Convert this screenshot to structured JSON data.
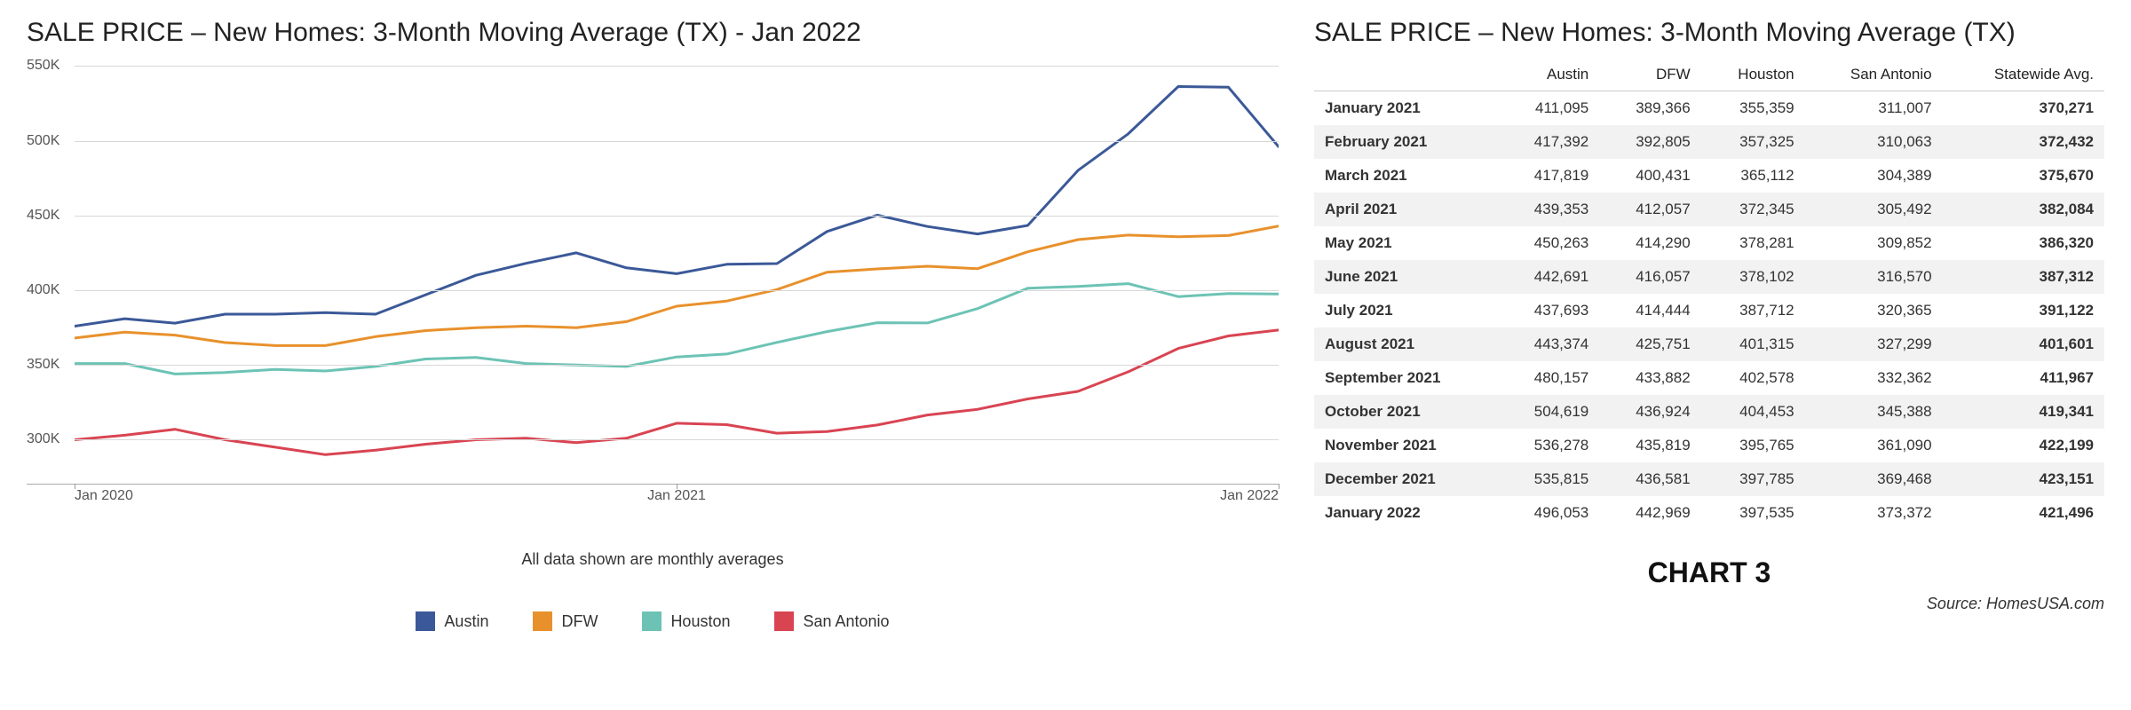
{
  "chart": {
    "type": "line",
    "title": "SALE PRICE – New Homes: 3-Month Moving Average (TX) - Jan 2022",
    "subtitle": "All data shown are monthly averages",
    "background_color": "#ffffff",
    "grid_color": "#d8d8d8",
    "axis_font_size": 16,
    "title_font_size": 30,
    "line_width": 3,
    "y_axis": {
      "min": 270000,
      "max": 555000,
      "ticks": [
        300000,
        350000,
        400000,
        450000,
        500000,
        550000
      ],
      "tick_labels": [
        "300K",
        "350K",
        "400K",
        "450K",
        "500K",
        "550K"
      ]
    },
    "x_axis": {
      "count": 25,
      "ticks": [
        0,
        12,
        24
      ],
      "tick_labels": [
        "Jan 2020",
        "Jan 2021",
        "Jan 2022"
      ]
    },
    "series": [
      {
        "name": "Austin",
        "color": "#3b5998",
        "values": [
          376000,
          381000,
          378000,
          384000,
          384000,
          385000,
          384000,
          397000,
          410000,
          418000,
          425000,
          415000,
          411095,
          417392,
          417819,
          439353,
          450263,
          442691,
          437693,
          443374,
          480157,
          504619,
          536278,
          535815,
          496053
        ]
      },
      {
        "name": "DFW",
        "color": "#e8912c",
        "values": [
          368000,
          372000,
          370000,
          365000,
          363000,
          363000,
          369000,
          373000,
          375000,
          376000,
          375000,
          379000,
          389366,
          392805,
          400431,
          412057,
          414290,
          416057,
          414444,
          425751,
          433882,
          436924,
          435819,
          436581,
          442969
        ]
      },
      {
        "name": "Houston",
        "color": "#6cc3b5",
        "values": [
          351000,
          351000,
          344000,
          345000,
          347000,
          346000,
          349000,
          354000,
          355000,
          351000,
          350000,
          349000,
          355359,
          357325,
          365112,
          372345,
          378281,
          378102,
          387712,
          401315,
          402578,
          404453,
          395765,
          397785,
          397535
        ]
      },
      {
        "name": "San Antonio",
        "color": "#d94452",
        "values": [
          300000,
          303000,
          307000,
          300000,
          295000,
          290000,
          293000,
          297000,
          300000,
          301000,
          298000,
          301000,
          311007,
          310063,
          304389,
          305492,
          309852,
          316570,
          320365,
          327299,
          332362,
          345388,
          361090,
          369468,
          373372
        ]
      }
    ],
    "legend": [
      "Austin",
      "DFW",
      "Houston",
      "San Antonio"
    ]
  },
  "table": {
    "title": "SALE PRICE – New Homes: 3-Month Moving Average (TX)",
    "columns": [
      "",
      "Austin",
      "DFW",
      "Houston",
      "San Antonio",
      "Statewide Avg."
    ],
    "rows": [
      [
        "January 2021",
        "411,095",
        "389,366",
        "355,359",
        "311,007",
        "370,271"
      ],
      [
        "February 2021",
        "417,392",
        "392,805",
        "357,325",
        "310,063",
        "372,432"
      ],
      [
        "March 2021",
        "417,819",
        "400,431",
        "365,112",
        "304,389",
        "375,670"
      ],
      [
        "April 2021",
        "439,353",
        "412,057",
        "372,345",
        "305,492",
        "382,084"
      ],
      [
        "May 2021",
        "450,263",
        "414,290",
        "378,281",
        "309,852",
        "386,320"
      ],
      [
        "June 2021",
        "442,691",
        "416,057",
        "378,102",
        "316,570",
        "387,312"
      ],
      [
        "July 2021",
        "437,693",
        "414,444",
        "387,712",
        "320,365",
        "391,122"
      ],
      [
        "August 2021",
        "443,374",
        "425,751",
        "401,315",
        "327,299",
        "401,601"
      ],
      [
        "September 2021",
        "480,157",
        "433,882",
        "402,578",
        "332,362",
        "411,967"
      ],
      [
        "October 2021",
        "504,619",
        "436,924",
        "404,453",
        "345,388",
        "419,341"
      ],
      [
        "November 2021",
        "536,278",
        "435,819",
        "395,765",
        "361,090",
        "422,199"
      ],
      [
        "December 2021",
        "535,815",
        "436,581",
        "397,785",
        "369,468",
        "423,151"
      ],
      [
        "January 2022",
        "496,053",
        "442,969",
        "397,535",
        "373,372",
        "421,496"
      ]
    ],
    "alt_rows": [
      1,
      3,
      5,
      7,
      9,
      11
    ]
  },
  "footer": {
    "chart_label": "CHART 3",
    "source": "Source: HomesUSA.com"
  }
}
